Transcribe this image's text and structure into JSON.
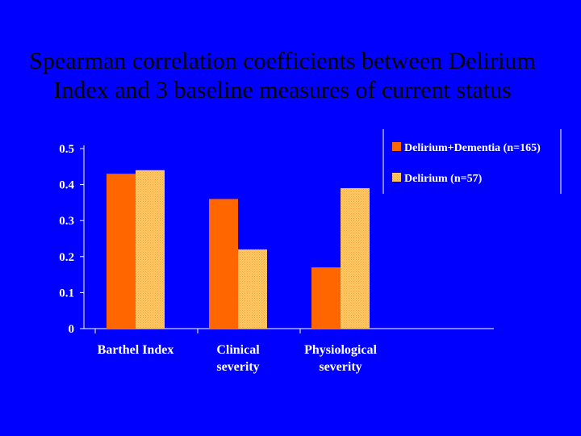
{
  "slide": {
    "title_line1": "Spearman correlation coefficients between Delirium",
    "title_line2": "Index and 3 baseline measures of current status"
  },
  "colors": {
    "background": "#0000ff",
    "series1": "#ff6600",
    "series2": "#ffcc66",
    "axis": "#ffffff"
  },
  "chart_data": {
    "type": "bar",
    "title": "",
    "xlabel": "",
    "ylabel": "",
    "categories": [
      [
        "Barthel Index"
      ],
      [
        "Clinical",
        "severity"
      ],
      [
        "Physiological",
        "severity"
      ]
    ],
    "series": [
      {
        "name": "Delirium+Dementia (n=165)",
        "values": [
          0.43,
          0.36,
          0.17
        ]
      },
      {
        "name": "Delirium (n=57)",
        "values": [
          0.44,
          0.22,
          0.39
        ]
      }
    ],
    "ylim": [
      0,
      0.5
    ],
    "yticks": [
      "0",
      "0.1",
      "0.2",
      "0.3",
      "0.4",
      "0.5"
    ],
    "grid": false,
    "legend_position": "top-right"
  }
}
